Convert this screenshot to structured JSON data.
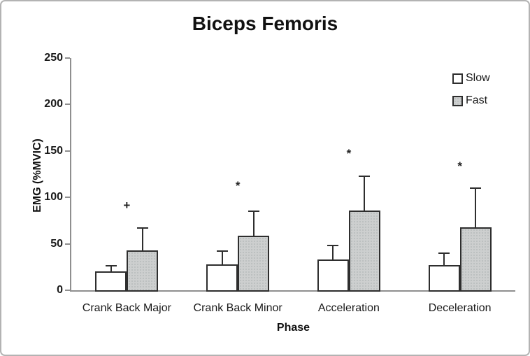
{
  "figure": {
    "title": "Biceps Femoris",
    "y_axis_label": "EMG (%MVIC)",
    "x_axis_label": "Phase"
  },
  "legend": {
    "position": "top-right",
    "items": [
      {
        "label": "Slow",
        "fill": "#ffffff"
      },
      {
        "label": "Fast",
        "fill": "#cdcfcf"
      }
    ]
  },
  "chart_data": {
    "type": "bar",
    "title": "Biceps Femoris",
    "xlabel": "Phase",
    "ylabel": "EMG (%MVIC)",
    "categories": [
      "Crank Back Major",
      "Crank Back Minor",
      "Acceleration",
      "Deceleration"
    ],
    "series": [
      {
        "name": "Slow",
        "fill": "#ffffff",
        "pattern": "none",
        "values": [
          20,
          28,
          33,
          27
        ],
        "errors_upper": [
          6,
          14,
          15,
          13
        ]
      },
      {
        "name": "Fast",
        "fill": "#cdcfcf",
        "pattern": "dots",
        "values": [
          43,
          59,
          86,
          68
        ],
        "errors_upper": [
          24,
          26,
          37,
          42
        ]
      }
    ],
    "annotations": [
      {
        "category": "Crank Back Major",
        "symbol": "+",
        "y": 90
      },
      {
        "category": "Crank Back Minor",
        "symbol": "*",
        "y": 115
      },
      {
        "category": "Acceleration",
        "symbol": "*",
        "y": 150
      },
      {
        "category": "Deceleration",
        "symbol": "*",
        "y": 136
      }
    ],
    "ylim": [
      0,
      250
    ],
    "yticks": [
      0,
      50,
      100,
      150,
      200,
      250
    ],
    "grid": false,
    "legend_position": "top-right"
  },
  "colors": {
    "bar_border": "#2e2e2e",
    "axis_line": "#8f8f8f",
    "text": "#1a1a1a",
    "frame_border": "#b3b3b3",
    "background": "#ffffff"
  }
}
